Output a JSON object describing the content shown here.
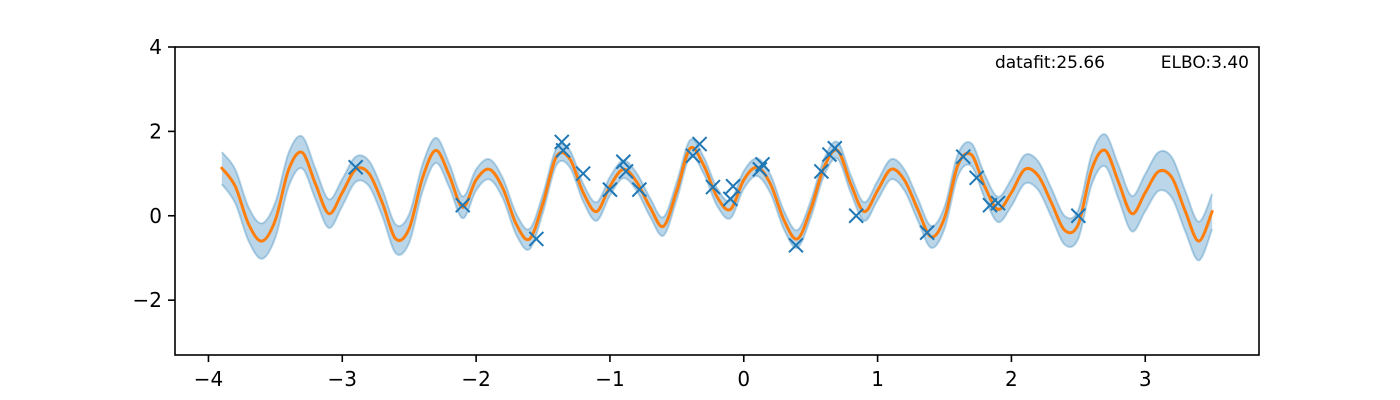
{
  "chart_data": {
    "type": "line",
    "title": "",
    "xlabel": "",
    "ylabel": "",
    "xlim": [
      -4.25,
      3.85
    ],
    "ylim": [
      -3.3,
      4.0
    ],
    "xticks": [
      -4,
      -3,
      -2,
      -1,
      0,
      1,
      2,
      3
    ],
    "yticks": [
      -2,
      0,
      2,
      4
    ],
    "grid": false,
    "legend": "none",
    "annotations": {
      "datafit": "datafit:25.66",
      "elbo": "ELBO:3.40"
    },
    "colors": {
      "mean": "#ff7f0e",
      "band": "#1f77b4",
      "points": "#1f77b4"
    },
    "mean_curve": {
      "x": [
        -3.9,
        -3.8,
        -3.7,
        -3.6,
        -3.5,
        -3.4,
        -3.3,
        -3.2,
        -3.1,
        -3.0,
        -2.9,
        -2.8,
        -2.7,
        -2.6,
        -2.5,
        -2.4,
        -2.3,
        -2.2,
        -2.1,
        -2.0,
        -1.9,
        -1.8,
        -1.7,
        -1.6,
        -1.5,
        -1.4,
        -1.3,
        -1.2,
        -1.1,
        -1.0,
        -0.9,
        -0.8,
        -0.7,
        -0.6,
        -0.5,
        -0.4,
        -0.3,
        -0.2,
        -0.1,
        0.0,
        0.1,
        0.2,
        0.3,
        0.4,
        0.5,
        0.6,
        0.7,
        0.8,
        0.9,
        1.0,
        1.1,
        1.2,
        1.3,
        1.4,
        1.5,
        1.6,
        1.7,
        1.8,
        1.9,
        2.0,
        2.1,
        2.2,
        2.3,
        2.4,
        2.5,
        2.6,
        2.7,
        2.8,
        2.9,
        3.0,
        3.1,
        3.2,
        3.3,
        3.4,
        3.5
      ],
      "mean": [
        1.13,
        0.7,
        -0.2,
        -0.6,
        -0.1,
        1.1,
        1.5,
        0.75,
        0.05,
        0.55,
        1.1,
        1.0,
        0.3,
        -0.55,
        -0.3,
        0.9,
        1.55,
        0.95,
        0.2,
        0.85,
        1.1,
        0.65,
        -0.2,
        -0.55,
        0.3,
        1.4,
        1.35,
        0.55,
        0.1,
        0.7,
        1.1,
        0.8,
        0.2,
        -0.25,
        0.6,
        1.6,
        1.2,
        0.45,
        0.15,
        0.85,
        1.15,
        0.75,
        -0.1,
        -0.55,
        0.15,
        1.15,
        1.55,
        0.75,
        0.1,
        0.6,
        1.1,
        0.85,
        0.15,
        -0.5,
        -0.05,
        1.2,
        1.45,
        0.7,
        0.15,
        0.55,
        1.1,
        0.95,
        0.3,
        -0.35,
        -0.2,
        1.1,
        1.55,
        0.8,
        0.05,
        0.55,
        1.05,
        0.9,
        0.1,
        -0.6,
        0.1
      ],
      "band": [
        0.38,
        0.4,
        0.4,
        0.42,
        0.42,
        0.4,
        0.38,
        0.36,
        0.34,
        0.32,
        0.3,
        0.3,
        0.32,
        0.34,
        0.34,
        0.32,
        0.3,
        0.28,
        0.26,
        0.25,
        0.24,
        0.24,
        0.25,
        0.24,
        0.22,
        0.2,
        0.2,
        0.21,
        0.22,
        0.22,
        0.21,
        0.21,
        0.22,
        0.22,
        0.21,
        0.2,
        0.2,
        0.21,
        0.21,
        0.21,
        0.21,
        0.22,
        0.22,
        0.21,
        0.2,
        0.2,
        0.2,
        0.21,
        0.22,
        0.23,
        0.24,
        0.25,
        0.26,
        0.26,
        0.26,
        0.26,
        0.27,
        0.28,
        0.3,
        0.32,
        0.34,
        0.34,
        0.34,
        0.34,
        0.34,
        0.36,
        0.38,
        0.4,
        0.42,
        0.44,
        0.46,
        0.48,
        0.48,
        0.46,
        0.42
      ]
    },
    "observations": {
      "x": [
        -2.9,
        -2.1,
        -1.55,
        -1.36,
        -1.35,
        -1.2,
        -1.0,
        -0.9,
        -0.88,
        -0.78,
        -0.38,
        -0.33,
        -0.23,
        -0.1,
        -0.08,
        0.12,
        0.14,
        0.39,
        0.58,
        0.64,
        0.68,
        0.84,
        1.37,
        1.64,
        1.74,
        1.84,
        1.9,
        2.5
      ],
      "y": [
        1.15,
        0.25,
        -0.55,
        1.75,
        1.55,
        1.0,
        0.62,
        1.28,
        1.05,
        0.62,
        1.42,
        1.7,
        0.68,
        0.4,
        0.7,
        1.1,
        1.22,
        -0.7,
        1.05,
        1.45,
        1.6,
        0.0,
        -0.4,
        1.4,
        0.9,
        0.25,
        0.3,
        0.0
      ]
    }
  }
}
